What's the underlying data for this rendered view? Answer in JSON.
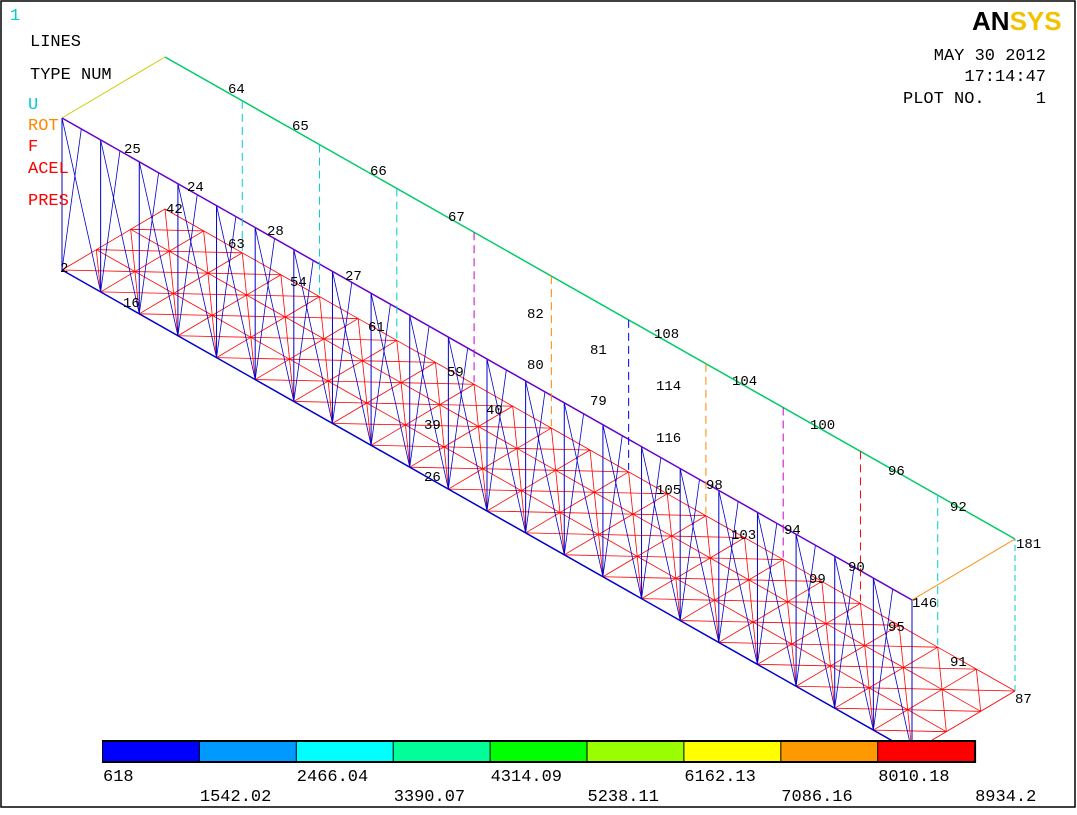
{
  "window_number": "1",
  "legend": {
    "lines": "LINES",
    "type": "TYPE NUM",
    "u": "U",
    "rot": "ROT",
    "f": "F",
    "acel": "ACEL",
    "pres": "PRES"
  },
  "logo": {
    "left": "AN",
    "right": "SYS"
  },
  "header": {
    "date": "MAY 30 2012",
    "time": "17:14:47",
    "plot_label": "PLOT NO.",
    "plot_number": "1"
  },
  "node_labels": [
    64,
    65,
    66,
    67,
    108,
    104,
    100,
    96,
    92,
    181,
    87,
    95,
    91,
    90,
    94,
    98,
    105,
    116,
    114,
    81,
    79,
    80,
    82,
    27,
    28,
    24,
    25,
    42,
    63,
    54,
    61,
    59,
    40,
    39,
    26,
    16,
    2,
    146,
    103,
    99
  ],
  "colorbar": {
    "colors": [
      "#0000ff",
      "#0099ff",
      "#00ffff",
      "#00ff99",
      "#00ff00",
      "#99ff00",
      "#ffff00",
      "#ff9900",
      "#ff0000"
    ],
    "values": [
      618,
      1542.02,
      2466.04,
      3390.07,
      4314.09,
      5238.11,
      6162.13,
      7086.16,
      8010.18,
      8934.2
    ]
  }
}
